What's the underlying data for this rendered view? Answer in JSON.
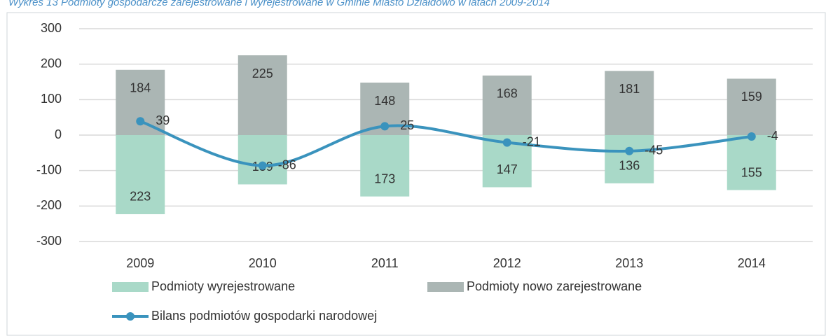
{
  "chart_data": {
    "type": "bar",
    "title": "Wykres 13 Podmioty gospodarcze zarejestrowane i wyrejestrowane w Gminie Miasto Działdowo w latach 2009-2014",
    "categories": [
      "2009",
      "2010",
      "2011",
      "2012",
      "2013",
      "2014"
    ],
    "series": [
      {
        "name": "Podmioty wyrejestrowane",
        "color": "#a9d9c8",
        "values": [
          -223,
          -139,
          -173,
          -147,
          -136,
          -155
        ],
        "value_labels": [
          "223",
          "139",
          "173",
          "147",
          "136",
          "155"
        ]
      },
      {
        "name": "Podmioty nowo zarejestrowane",
        "color": "#abb6b4",
        "values": [
          184,
          225,
          148,
          168,
          181,
          159
        ]
      },
      {
        "name": "Bilans podmiotów gospodarki narodowej",
        "type": "line",
        "color": "#3a93bd",
        "values": [
          39,
          -86,
          25,
          -21,
          -45,
          -4
        ]
      }
    ],
    "ylim": [
      -300,
      300
    ],
    "yticks": [
      -300,
      -200,
      -100,
      0,
      100,
      200,
      300
    ],
    "grid": true
  }
}
